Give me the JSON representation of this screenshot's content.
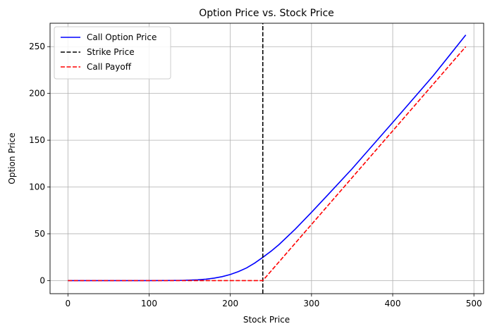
{
  "chart_data": {
    "type": "line",
    "title": "Option Price vs. Stock Price",
    "xlabel": "Stock Price",
    "ylabel": "Option Price",
    "xlim": [
      -22,
      512
    ],
    "ylim": [
      -14,
      275
    ],
    "xticks": [
      0,
      100,
      200,
      300,
      400,
      500
    ],
    "yticks": [
      0,
      50,
      100,
      150,
      200,
      250
    ],
    "grid": true,
    "legend_position": "upper-left",
    "strike": 240,
    "series": [
      {
        "name": "Call Option Price",
        "color": "#0000ff",
        "style": "solid",
        "x": [
          0,
          100,
          140,
          160,
          170,
          180,
          190,
          200,
          210,
          220,
          230,
          240,
          250,
          260,
          280,
          300,
          320,
          350,
          400,
          450,
          490
        ],
        "y": [
          0,
          0,
          0.2,
          0.8,
          1.5,
          2.6,
          4.2,
          6.5,
          9.6,
          13.5,
          18.7,
          24.8,
          31.3,
          38.5,
          55.0,
          73.0,
          91.5,
          119.5,
          169.0,
          219.0,
          262.5
        ]
      },
      {
        "name": "Strike Price",
        "color": "#000000",
        "style": "dashed",
        "x": [
          240,
          240
        ],
        "y": [
          -14,
          275
        ]
      },
      {
        "name": "Call Payoff",
        "color": "#ff0000",
        "style": "dashed",
        "x": [
          0,
          240,
          490
        ],
        "y": [
          0,
          0,
          250
        ]
      }
    ]
  }
}
